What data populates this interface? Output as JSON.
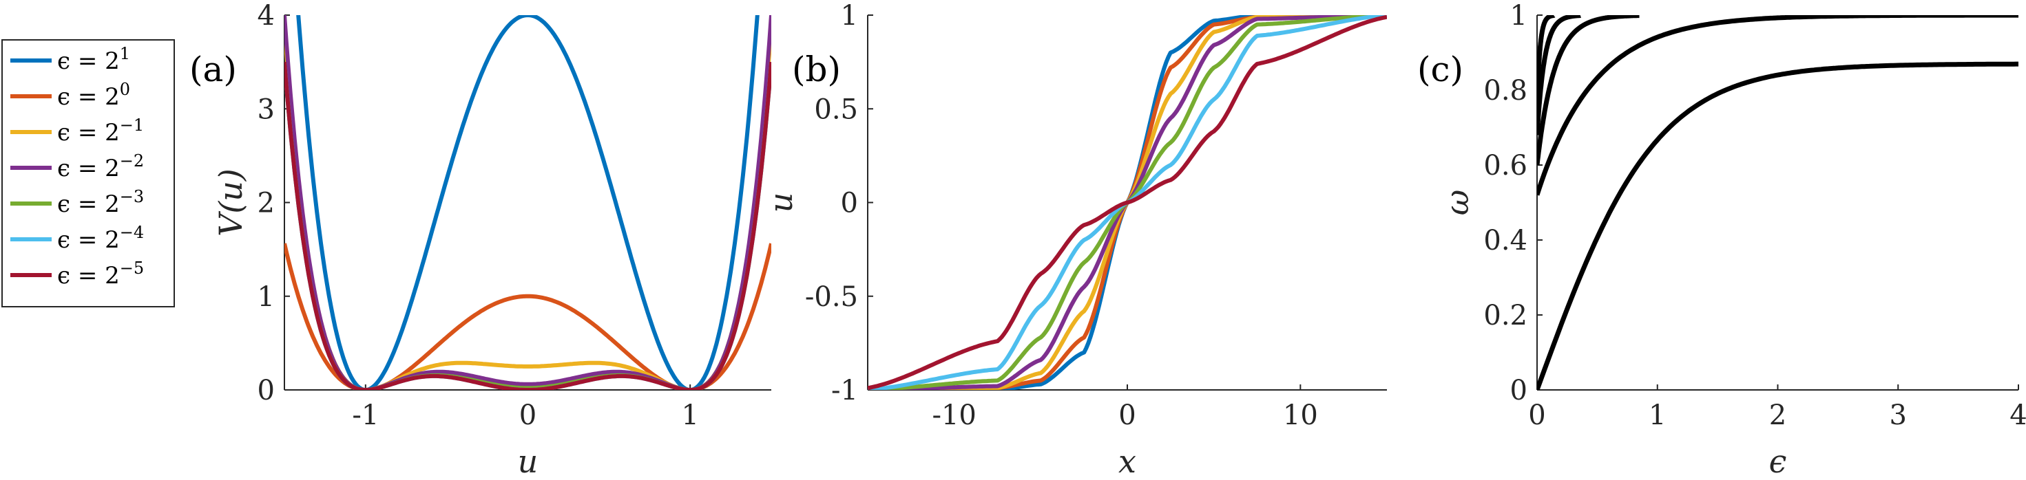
{
  "legend": [
    {
      "label": "ϵ = 2",
      "exp": "1",
      "color": "#0072BD",
      "eps": 2
    },
    {
      "label": "ϵ = 2",
      "exp": "0",
      "color": "#D95319",
      "eps": 1
    },
    {
      "label": "ϵ = 2",
      "exp": "−1",
      "color": "#EDB120",
      "eps": 0.5
    },
    {
      "label": "ϵ = 2",
      "exp": "−2",
      "color": "#7E2F8E",
      "eps": 0.25
    },
    {
      "label": "ϵ = 2",
      "exp": "−3",
      "color": "#77AC30",
      "eps": 0.125
    },
    {
      "label": "ϵ = 2",
      "exp": "−4",
      "color": "#4DBEEE",
      "eps": 0.0625
    },
    {
      "label": "ϵ = 2",
      "exp": "−5",
      "color": "#A2142F",
      "eps": 0.03125
    }
  ],
  "chart_data": [
    {
      "panel_label": "(a)",
      "type": "line",
      "xlabel": "u",
      "ylabel": "V(u)",
      "xlim": [
        -1.5,
        1.5
      ],
      "ylim": [
        0,
        4
      ],
      "xticks": [
        -1,
        0,
        1
      ],
      "xtick_labels": [
        "-1",
        "0",
        "1"
      ],
      "yticks": [
        0,
        1,
        2,
        3,
        4
      ],
      "ytick_labels": [
        "0",
        "1",
        "2",
        "3",
        "4"
      ],
      "series": [
        {
          "name": "ϵ = 2^1",
          "x": [
            -1.5,
            -1.25,
            -1,
            -0.75,
            -0.5,
            -0.25,
            0,
            0.25,
            0.5,
            0.75,
            1,
            1.25,
            1.5
          ],
          "y": [
            6.25,
            1.27,
            0,
            0.77,
            2.25,
            3.52,
            4,
            3.52,
            2.25,
            0.77,
            0,
            1.27,
            6.25
          ]
        },
        {
          "name": "ϵ = 2^0",
          "x": [
            -1.5,
            -1.25,
            -1,
            -0.75,
            -0.5,
            -0.25,
            0,
            0.25,
            0.5,
            0.75,
            1,
            1.25,
            1.5
          ],
          "y": [
            1.56,
            0.32,
            0,
            0.19,
            0.56,
            0.88,
            1,
            0.88,
            0.56,
            0.19,
            0,
            0.32,
            1.56
          ]
        },
        {
          "name": "ϵ = 2^-1",
          "x": [
            -1.5,
            -1.25,
            -1,
            -0.75,
            -0.5,
            -0.25,
            0,
            0.25,
            0.5,
            0.75,
            1,
            1.25,
            1.5
          ],
          "y": [
            4.14,
            0.85,
            0,
            0.19,
            0.28,
            0.26,
            0.25,
            0.26,
            0.28,
            0.19,
            0,
            0.85,
            4.14
          ]
        },
        {
          "name": "ϵ = 2^-2",
          "x": [
            -1.5,
            -1.25,
            -1,
            -0.75,
            -0.5,
            -0.25,
            0,
            0.25,
            0.5,
            0.75,
            1,
            1.25,
            1.5
          ],
          "y": [
            3.78,
            0.78,
            0,
            0.14,
            0.19,
            0.13,
            0.06,
            0.13,
            0.19,
            0.14,
            0,
            0.78,
            3.78
          ]
        },
        {
          "name": "ϵ = 2^-3",
          "x": [
            -1.5,
            -1.25,
            -1,
            -0.75,
            -0.5,
            -0.25,
            0,
            0.25,
            0.5,
            0.75,
            1,
            1.25,
            1.5
          ],
          "y": [
            3.62,
            0.74,
            0,
            0.12,
            0.15,
            0.1,
            0.02,
            0.1,
            0.15,
            0.12,
            0,
            0.74,
            3.62
          ]
        },
        {
          "name": "ϵ = 2^-4",
          "x": [
            -1.5,
            -1.25,
            -1,
            -0.75,
            -0.5,
            -0.25,
            0,
            0.25,
            0.5,
            0.75,
            1,
            1.25,
            1.5
          ],
          "y": [
            3.55,
            0.73,
            0,
            0.11,
            0.14,
            0.08,
            0.0,
            0.08,
            0.14,
            0.11,
            0,
            0.73,
            3.55
          ]
        },
        {
          "name": "ϵ = 2^-5",
          "x": [
            -1.5,
            -1.25,
            -1,
            -0.75,
            -0.5,
            -0.25,
            0,
            0.25,
            0.5,
            0.75,
            1,
            1.25,
            1.5
          ],
          "y": [
            3.52,
            0.72,
            0,
            0.11,
            0.14,
            0.08,
            0.0,
            0.08,
            0.14,
            0.11,
            0,
            0.72,
            3.52
          ]
        }
      ]
    },
    {
      "panel_label": "(b)",
      "type": "line",
      "xlabel": "x",
      "ylabel": "u",
      "xlim": [
        -15,
        15
      ],
      "ylim": [
        -1,
        1
      ],
      "xticks": [
        -10,
        0,
        10
      ],
      "xtick_labels": [
        "-10",
        "0",
        "10"
      ],
      "yticks": [
        -1,
        -0.5,
        0,
        0.5,
        1
      ],
      "ytick_labels": [
        "-1",
        "-0.5",
        "0",
        "0.5",
        "1"
      ],
      "series": [
        {
          "name": "ϵ = 2^1",
          "x": [
            -15,
            -7.5,
            -5,
            -2.5,
            0,
            2.5,
            5,
            7.5,
            15
          ],
          "y": [
            -1,
            -1,
            -0.97,
            -0.8,
            0,
            0.8,
            0.97,
            1,
            1
          ]
        },
        {
          "name": "ϵ = 2^0",
          "x": [
            -15,
            -7.5,
            -5,
            -2.5,
            0,
            2.5,
            5,
            7.5,
            15
          ],
          "y": [
            -1,
            -0.99,
            -0.95,
            -0.72,
            0,
            0.72,
            0.95,
            0.99,
            1
          ]
        },
        {
          "name": "ϵ = 2^-1",
          "x": [
            -15,
            -7.5,
            -5,
            -2.5,
            0,
            2.5,
            5,
            7.5,
            15
          ],
          "y": [
            -1,
            -0.99,
            -0.91,
            -0.58,
            0,
            0.58,
            0.91,
            0.99,
            1
          ]
        },
        {
          "name": "ϵ = 2^-2",
          "x": [
            -15,
            -7.5,
            -5,
            -2.5,
            0,
            2.5,
            5,
            7.5,
            15
          ],
          "y": [
            -1,
            -0.98,
            -0.84,
            -0.45,
            0,
            0.45,
            0.84,
            0.98,
            1
          ]
        },
        {
          "name": "ϵ = 2^-3",
          "x": [
            -15,
            -7.5,
            -5,
            -2.5,
            0,
            2.5,
            5,
            7.5,
            15
          ],
          "y": [
            -1,
            -0.95,
            -0.72,
            -0.32,
            0,
            0.32,
            0.72,
            0.95,
            1
          ]
        },
        {
          "name": "ϵ = 2^-4",
          "x": [
            -15,
            -7.5,
            -5,
            -2.5,
            0,
            2.5,
            5,
            7.5,
            15
          ],
          "y": [
            -1,
            -0.89,
            -0.55,
            -0.2,
            0,
            0.2,
            0.55,
            0.89,
            1
          ]
        },
        {
          "name": "ϵ = 2^-5",
          "x": [
            -15,
            -7.5,
            -5,
            -2.5,
            0,
            2.5,
            5,
            7.5,
            15
          ],
          "y": [
            -0.99,
            -0.74,
            -0.38,
            -0.12,
            0,
            0.12,
            0.38,
            0.74,
            0.99
          ]
        }
      ]
    },
    {
      "panel_label": "(c)",
      "type": "line",
      "xlabel": "ϵ",
      "ylabel": "ω",
      "xlim": [
        0,
        4
      ],
      "ylim": [
        0,
        1
      ],
      "xticks": [
        0,
        1,
        2,
        3,
        4
      ],
      "xtick_labels": [
        "0",
        "1",
        "2",
        "3",
        "4"
      ],
      "yticks": [
        0,
        0.2,
        0.4,
        0.6,
        0.8,
        1
      ],
      "ytick_labels": [
        "0",
        "0.2",
        "0.4",
        "0.6",
        "0.8",
        "1"
      ],
      "series": [
        {
          "x": [
            0,
            0.25,
            0.5,
            0.75,
            1,
            1.5,
            2,
            2.5,
            3,
            3.5,
            4
          ],
          "y": [
            0,
            0.3,
            0.46,
            0.56,
            0.63,
            0.72,
            0.77,
            0.8,
            0.82,
            0.84,
            0.85
          ]
        },
        {
          "x": [
            0,
            0.1,
            0.25,
            0.5,
            0.75,
            1,
            1.5,
            2,
            3,
            4
          ],
          "y": [
            0.52,
            0.6,
            0.68,
            0.78,
            0.85,
            0.9,
            0.95,
            0.98,
            0.995,
            1
          ]
        },
        {
          "x": [
            0,
            0.05,
            0.1,
            0.2,
            0.3,
            0.4,
            0.6,
            0.85
          ],
          "y": [
            0.6,
            0.72,
            0.8,
            0.88,
            0.93,
            0.96,
            0.99,
            1
          ]
        },
        {
          "x": [
            0,
            0.02,
            0.05,
            0.1,
            0.15,
            0.2,
            0.3,
            0.36
          ],
          "y": [
            0.68,
            0.77,
            0.85,
            0.92,
            0.95,
            0.97,
            0.99,
            1
          ]
        },
        {
          "x": [
            0,
            0.01,
            0.03,
            0.05,
            0.08,
            0.1,
            0.14
          ],
          "y": [
            0.76,
            0.83,
            0.9,
            0.94,
            0.97,
            0.98,
            1
          ]
        }
      ]
    }
  ]
}
